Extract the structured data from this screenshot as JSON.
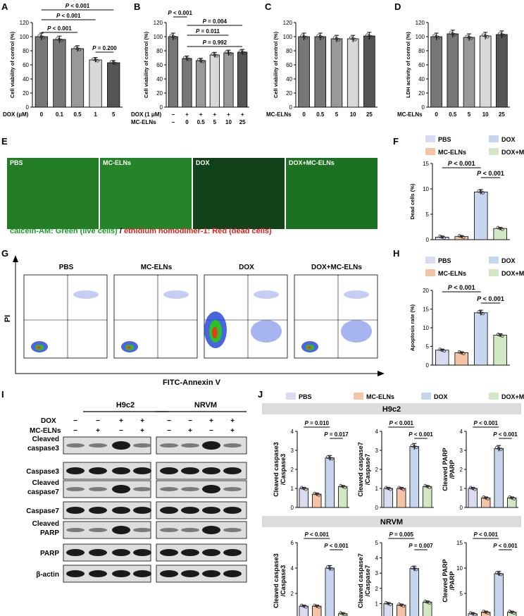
{
  "panels": {
    "A": {
      "label": "A",
      "chart_type": "bar",
      "ylabel": "Cell viability of control (%)",
      "xlabel": "DOX (μM)",
      "categories": [
        "0",
        "0.1",
        "0.5",
        "1",
        "5"
      ],
      "values": [
        100,
        96,
        83,
        67,
        63
      ],
      "ylim": [
        0,
        120
      ],
      "yticks": [
        "0",
        "20",
        "40",
        "60",
        "80",
        "100",
        "120"
      ],
      "sig": [
        "P < 0.001",
        "P < 0.001",
        "P < 0.001",
        "P = 0.200"
      ]
    },
    "B": {
      "label": "B",
      "chart_type": "bar",
      "ylabel": "Cell viability of control (%)",
      "rows": [
        {
          "name": "DOX (1 μM)",
          "vals": [
            "−",
            "+",
            "+",
            "+",
            "+",
            "+"
          ]
        },
        {
          "name": "MC-ELNs",
          "vals": [
            "−",
            "0",
            "0.5",
            "5",
            "10",
            "25"
          ]
        }
      ],
      "values": [
        100,
        69,
        66,
        74,
        77,
        78
      ],
      "ylim": [
        0,
        120
      ],
      "yticks": [
        "0",
        "20",
        "40",
        "60",
        "80",
        "100",
        "120"
      ],
      "sig": [
        "P < 0.001",
        "P = 0.004",
        "P = 0.011",
        "P = 0.992"
      ]
    },
    "C": {
      "label": "C",
      "chart_type": "bar",
      "ylabel": "Cell viability of control (%)",
      "xlabel": "MC-ELNs",
      "categories": [
        "0",
        "0.5",
        "5",
        "10",
        "25"
      ],
      "values": [
        100,
        100,
        97,
        97,
        101
      ],
      "ylim": [
        0,
        120
      ],
      "yticks": [
        "0",
        "20",
        "40",
        "60",
        "80",
        "100",
        "120"
      ]
    },
    "D": {
      "label": "D",
      "chart_type": "bar",
      "ylabel": "LDH activity of control (%)",
      "xlabel": "MC-ELNs",
      "categories": [
        "0",
        "0.5",
        "5",
        "10",
        "25"
      ],
      "values": [
        100,
        104,
        99,
        101,
        103
      ],
      "ylim": [
        0,
        120
      ],
      "yticks": [
        "0",
        "20",
        "40",
        "60",
        "80",
        "100",
        "120"
      ]
    },
    "E": {
      "label": "E",
      "images": [
        "PBS",
        "MC-ELNs",
        "DOX",
        "DOX+MC-ELNs"
      ],
      "caption_green": "calcein-AM: Green (live cells)",
      "caption_sep": " / ",
      "caption_red": "ethidium homodimer-1: Red (dead cells)"
    },
    "F": {
      "label": "F",
      "chart_type": "bar",
      "ylabel": "Dead cells (%)",
      "legend": [
        "PBS",
        "DOX",
        "MC-ELNs",
        "DOX+MC-ELNs"
      ],
      "values": [
        0.5,
        0.6,
        9.4,
        2.2
      ],
      "ylim": [
        0,
        15
      ],
      "yticks": [
        "0",
        "5",
        "10",
        "15"
      ],
      "sig": [
        "P < 0.001",
        "P < 0.001"
      ]
    },
    "G": {
      "label": "G",
      "titles": [
        "PBS",
        "MC-ELNs",
        "DOX",
        "DOX+MC-ELNs"
      ],
      "xlabel": "FITC-Annexin V",
      "ylabel": "PI"
    },
    "H": {
      "label": "H",
      "chart_type": "bar",
      "ylabel": "Apoptosis rate (%)",
      "legend": [
        "PBS",
        "DOX",
        "MC-ELNs",
        "DOX+MC-ELNs"
      ],
      "values": [
        4.0,
        3.3,
        14.0,
        8.0
      ],
      "ylim": [
        0,
        20
      ],
      "yticks": [
        "0",
        "5",
        "10",
        "15",
        "20"
      ],
      "sig": [
        "P < 0.001",
        "P < 0.001"
      ]
    },
    "I": {
      "label": "I",
      "groups": [
        "H9c2",
        "NRVM"
      ],
      "rows": [
        "DOX",
        "MC-ELNs"
      ],
      "dox": [
        "−",
        "−",
        "+",
        "+"
      ],
      "mc": [
        "−",
        "+",
        "−",
        "+"
      ],
      "blots": [
        "Cleaved caspase3",
        "Caspase3",
        "Cleaved caspase7",
        "Caspase7",
        "Cleaved PARP",
        "PARP",
        "β-actin"
      ]
    },
    "J": {
      "label": "J",
      "legend": [
        "PBS",
        "MC-ELNs",
        "DOX",
        "DOX+MC-ELNs"
      ],
      "h9c2": "H9c2",
      "nrvm": "NRVM",
      "plots": [
        {
          "ylabel1": "Cleaved caspase3",
          "ylabel2": "/Caspase3",
          "values": [
            1.0,
            0.7,
            2.6,
            1.1
          ],
          "ylim": [
            0,
            4
          ],
          "yticks": [
            "0",
            "1",
            "2",
            "3",
            "4"
          ],
          "sig": [
            "P = 0.010",
            "P = 0.017"
          ]
        },
        {
          "ylabel1": "Cleaved caspase7",
          "ylabel2": "/Caspase7",
          "values": [
            1.0,
            1.0,
            3.2,
            1.1
          ],
          "ylim": [
            0,
            4
          ],
          "yticks": [
            "0",
            "1",
            "2",
            "3",
            "4"
          ],
          "sig": [
            "P < 0.001",
            "P < 0.001"
          ]
        },
        {
          "ylabel1": "Cleaved PARP",
          "ylabel2": "/PARP",
          "values": [
            1.0,
            0.5,
            3.1,
            0.5
          ],
          "ylim": [
            0,
            4
          ],
          "yticks": [
            "0",
            "1",
            "2",
            "3",
            "4"
          ],
          "sig": [
            "P < 0.001",
            "P < 0.001"
          ]
        },
        {
          "ylabel1": "Cleaved caspase3",
          "ylabel2": "/Caspase3",
          "values": [
            1.0,
            1.0,
            4.0,
            0.4
          ],
          "ylim": [
            0,
            6
          ],
          "yticks": [
            "0",
            "2",
            "4",
            "6"
          ],
          "sig": [
            "P < 0.001",
            "P < 0.001"
          ]
        },
        {
          "ylabel1": "Cleaved caspase7",
          "ylabel2": "/Caspase7",
          "values": [
            1.0,
            0.9,
            3.3,
            1.1
          ],
          "ylim": [
            0,
            5
          ],
          "yticks": [
            "0",
            "1",
            "2",
            "3",
            "4",
            "5"
          ],
          "sig": [
            "P = 0.005",
            "P = 0.007"
          ]
        },
        {
          "ylabel1": "Cleaved PARP",
          "ylabel2": "/PARP",
          "values": [
            1.0,
            1.3,
            8.9,
            1.3
          ],
          "ylim": [
            0,
            15
          ],
          "yticks": [
            "0",
            "5",
            "10",
            "15"
          ],
          "sig": [
            "P < 0.001",
            "P < 0.001"
          ]
        }
      ]
    }
  },
  "colors": {
    "pbs": "#d9dcf0",
    "mc": "#f5c3a6",
    "dox": "#c6d6ee",
    "doxmc": "#d2e7c4",
    "dark1": "#888888",
    "dark2": "#bbbbbb",
    "dark3": "#e0e0e0",
    "dark4": "#555555"
  }
}
